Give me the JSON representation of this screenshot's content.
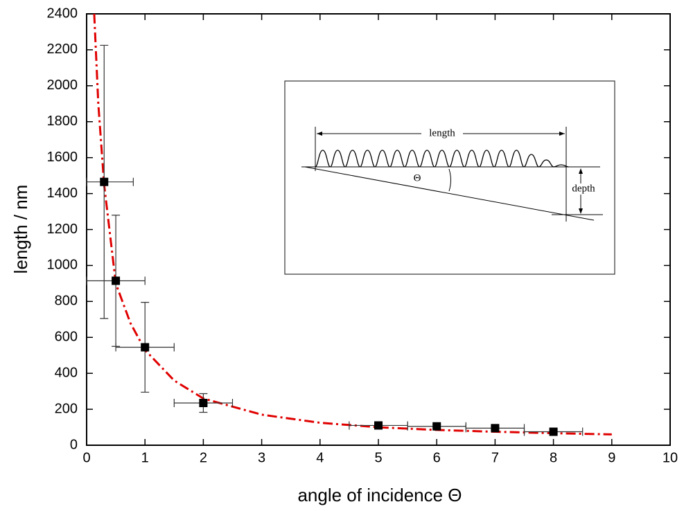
{
  "chart_data": {
    "type": "scatter",
    "xlabel": "angle of incidence Θ",
    "ylabel": "length / nm",
    "xlim": [
      0,
      10
    ],
    "ylim": [
      0,
      2400
    ],
    "xticks": [
      0,
      1,
      2,
      3,
      4,
      5,
      6,
      7,
      8,
      9,
      10
    ],
    "yticks": [
      0,
      200,
      400,
      600,
      800,
      1000,
      1200,
      1400,
      1600,
      1800,
      2000,
      2200,
      2400
    ],
    "series": [
      {
        "color": "#000000",
        "x": [
          0.3,
          0.5,
          1,
          2,
          5,
          6,
          7,
          8
        ],
        "values": [
          1465,
          915,
          545,
          235,
          110,
          105,
          95,
          75
        ],
        "xerr": [
          0.5,
          0.5,
          0.5,
          0.5,
          0.5,
          0.5,
          0.5,
          0.5
        ],
        "yerr": [
          760,
          365,
          250,
          52,
          10,
          10,
          10,
          10
        ]
      }
    ],
    "fit": {
      "color": "#e00000",
      "x": [
        0.13,
        0.2,
        0.3,
        0.5,
        0.75,
        1,
        1.5,
        2,
        3,
        4,
        5,
        6,
        7,
        8,
        9
      ],
      "values": [
        2400,
        1900,
        1450,
        900,
        680,
        530,
        360,
        260,
        170,
        125,
        100,
        85,
        75,
        67,
        60
      ]
    }
  },
  "inset": {
    "labels": {
      "length": "length",
      "angle": "Θ",
      "depth": "depth"
    }
  }
}
